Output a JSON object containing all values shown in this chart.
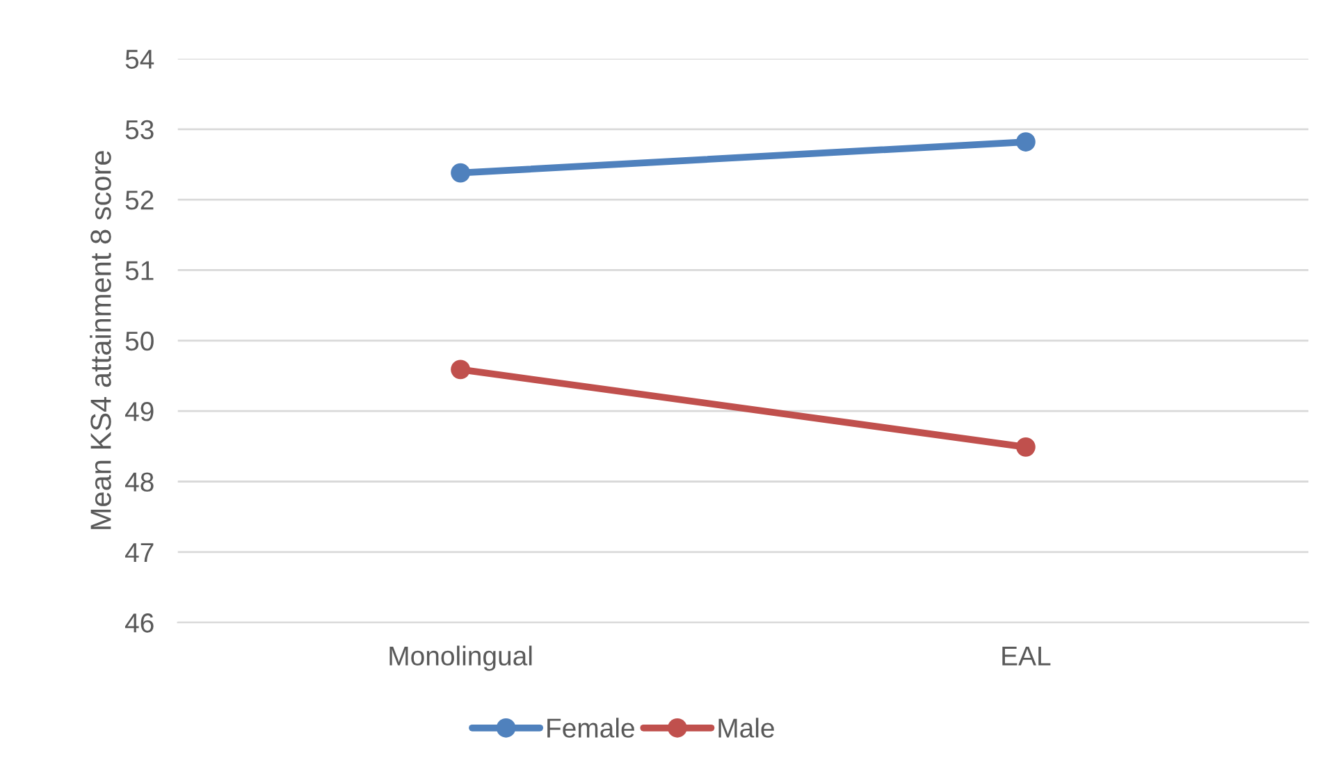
{
  "chart_data": {
    "type": "line",
    "ylabel": "Mean KS4 attainment 8 score",
    "categories": [
      "Monolingual",
      "EAL"
    ],
    "series": [
      {
        "name": "Female",
        "color": "#4f81bd",
        "values": [
          52.38,
          52.82
        ]
      },
      {
        "name": "Male",
        "color": "#c0504d",
        "values": [
          49.59,
          48.49
        ]
      }
    ],
    "ylim": [
      46,
      54
    ],
    "yticks": [
      46,
      47,
      48,
      49,
      50,
      51,
      52,
      53,
      54
    ],
    "grid": "y",
    "legend": "bottom",
    "marker": "circle",
    "line_style": "solid"
  }
}
